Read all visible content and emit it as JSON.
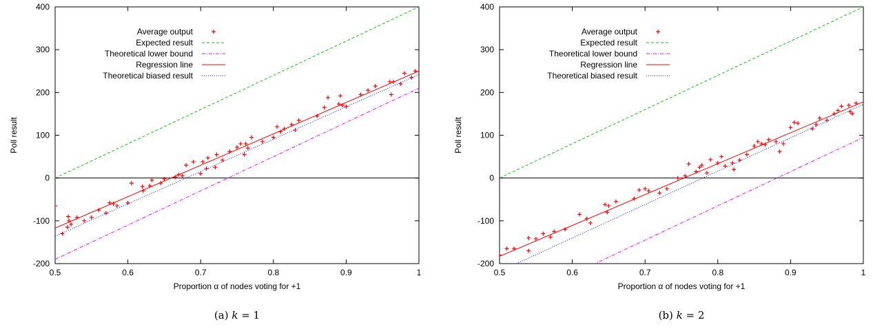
{
  "chart_data": [
    {
      "type": "scatter",
      "caption": {
        "prefix": "(a) ",
        "var": "k",
        "suffix": " = 1"
      },
      "xlabel": "Proportion α of nodes voting for +1",
      "ylabel": "Poll result",
      "xlim": [
        0.5,
        1
      ],
      "ylim": [
        -200,
        400
      ],
      "xticks": [
        0.5,
        0.6,
        0.7,
        0.8,
        0.9,
        1
      ],
      "yticks": [
        -200,
        -100,
        0,
        100,
        200,
        300,
        400
      ],
      "x_tick_labels": [
        "0.5",
        "0.6",
        "0.7",
        "0.8",
        "0.9",
        "1"
      ],
      "y_tick_labels": [
        "-200",
        "-100",
        "0",
        "100",
        "200",
        "300",
        "400"
      ],
      "zero_line": true,
      "legend_position": "top-left",
      "series": [
        {
          "name": "Average output",
          "kind": "points",
          "color": "#ff0000",
          "x": [
            0.5,
            0.51,
            0.517,
            0.518,
            0.519,
            0.522,
            0.53,
            0.54,
            0.55,
            0.56,
            0.57,
            0.575,
            0.58,
            0.585,
            0.6,
            0.605,
            0.62,
            0.621,
            0.63,
            0.633,
            0.645,
            0.65,
            0.665,
            0.67,
            0.675,
            0.68,
            0.69,
            0.7,
            0.703,
            0.708,
            0.71,
            0.72,
            0.722,
            0.73,
            0.74,
            0.75,
            0.755,
            0.76,
            0.762,
            0.765,
            0.77,
            0.785,
            0.8,
            0.805,
            0.81,
            0.815,
            0.825,
            0.83,
            0.835,
            0.86,
            0.87,
            0.875,
            0.89,
            0.892,
            0.895,
            0.9,
            0.92,
            0.93,
            0.94,
            0.96,
            0.962,
            0.965,
            0.975,
            0.98,
            0.99,
            0.995
          ],
          "y": [
            -65,
            -130,
            -115,
            -90,
            -100,
            -108,
            -92,
            -100,
            -92,
            -75,
            -82,
            -58,
            -60,
            -65,
            -58,
            -12,
            -20,
            -30,
            -18,
            -5,
            -12,
            -2,
            2,
            8,
            5,
            30,
            38,
            10,
            38,
            22,
            47,
            25,
            55,
            42,
            62,
            72,
            80,
            55,
            80,
            70,
            95,
            85,
            95,
            120,
            108,
            115,
            125,
            112,
            135,
            145,
            165,
            188,
            173,
            192,
            170,
            167,
            195,
            205,
            215,
            225,
            195,
            225,
            220,
            245,
            235,
            250
          ]
        },
        {
          "name": "Expected result",
          "kind": "line",
          "color": "#00cc00",
          "dash": "4,3",
          "x": [
            0.5,
            1
          ],
          "y": [
            0,
            400
          ]
        },
        {
          "name": "Theoretical lower bound",
          "kind": "line",
          "color": "#ff00ff",
          "dash": "5,2,1,2",
          "x": [
            0.5,
            1
          ],
          "y": [
            -190,
            210
          ]
        },
        {
          "name": "Regression line",
          "kind": "line",
          "color": "#ff0000",
          "dash": "",
          "x": [
            0.5,
            1
          ],
          "y": [
            -117,
            250
          ]
        },
        {
          "name": "Theoretical biased result",
          "kind": "line",
          "color": "#0000ff",
          "dash": "1,2",
          "x": [
            0.5,
            1
          ],
          "y": [
            -136,
            242
          ]
        }
      ]
    },
    {
      "type": "scatter",
      "caption": {
        "prefix": "(b) ",
        "var": "k",
        "suffix": " = 2"
      },
      "xlabel": "Proportion α of nodes voting for +1",
      "ylabel": "Poll result",
      "xlim": [
        0.5,
        1
      ],
      "ylim": [
        -200,
        400
      ],
      "xticks": [
        0.5,
        0.6,
        0.7,
        0.8,
        0.9,
        1
      ],
      "yticks": [
        -200,
        -100,
        0,
        100,
        200,
        300,
        400
      ],
      "x_tick_labels": [
        "0.5",
        "0.6",
        "0.7",
        "0.8",
        "0.9",
        "1"
      ],
      "y_tick_labels": [
        "-200",
        "-100",
        "0",
        "100",
        "200",
        "300",
        "400"
      ],
      "zero_line": true,
      "legend_position": "top-left",
      "series": [
        {
          "name": "Average output",
          "kind": "points",
          "color": "#ff0000",
          "x": [
            0.5,
            0.51,
            0.52,
            0.54,
            0.54,
            0.55,
            0.56,
            0.57,
            0.575,
            0.59,
            0.61,
            0.62,
            0.625,
            0.645,
            0.648,
            0.65,
            0.66,
            0.685,
            0.692,
            0.7,
            0.705,
            0.72,
            0.73,
            0.745,
            0.755,
            0.76,
            0.77,
            0.775,
            0.778,
            0.785,
            0.79,
            0.8,
            0.805,
            0.81,
            0.82,
            0.822,
            0.83,
            0.84,
            0.85,
            0.855,
            0.86,
            0.865,
            0.87,
            0.88,
            0.885,
            0.89,
            0.9,
            0.905,
            0.91,
            0.93,
            0.935,
            0.94,
            0.95,
            0.96,
            0.965,
            0.97,
            0.98,
            0.982,
            0.985,
            0.99
          ],
          "y": [
            -180,
            -165,
            -165,
            -140,
            -170,
            -142,
            -130,
            -138,
            -125,
            -120,
            -85,
            -95,
            -105,
            -62,
            -80,
            -65,
            -55,
            -48,
            -28,
            -25,
            -30,
            -35,
            -25,
            0,
            5,
            33,
            15,
            25,
            30,
            12,
            43,
            35,
            50,
            28,
            35,
            20,
            42,
            55,
            75,
            85,
            80,
            78,
            90,
            85,
            62,
            80,
            118,
            130,
            128,
            115,
            125,
            140,
            135,
            150,
            158,
            168,
            170,
            155,
            150,
            175
          ]
        },
        {
          "name": "Expected result",
          "kind": "line",
          "color": "#00cc00",
          "dash": "4,3",
          "x": [
            0.5,
            1
          ],
          "y": [
            0,
            400
          ]
        },
        {
          "name": "Theoretical lower bound",
          "kind": "line",
          "color": "#ff00ff",
          "dash": "5,2,1,2",
          "x": [
            0.5,
            1
          ],
          "y": [
            -305,
            95
          ]
        },
        {
          "name": "Regression line",
          "kind": "line",
          "color": "#ff0000",
          "dash": "",
          "x": [
            0.5,
            1
          ],
          "y": [
            -183,
            178
          ]
        },
        {
          "name": "Theoretical biased result",
          "kind": "line",
          "color": "#0000ff",
          "dash": "1,2",
          "x": [
            0.5,
            1
          ],
          "y": [
            -218,
            172
          ]
        }
      ]
    }
  ]
}
